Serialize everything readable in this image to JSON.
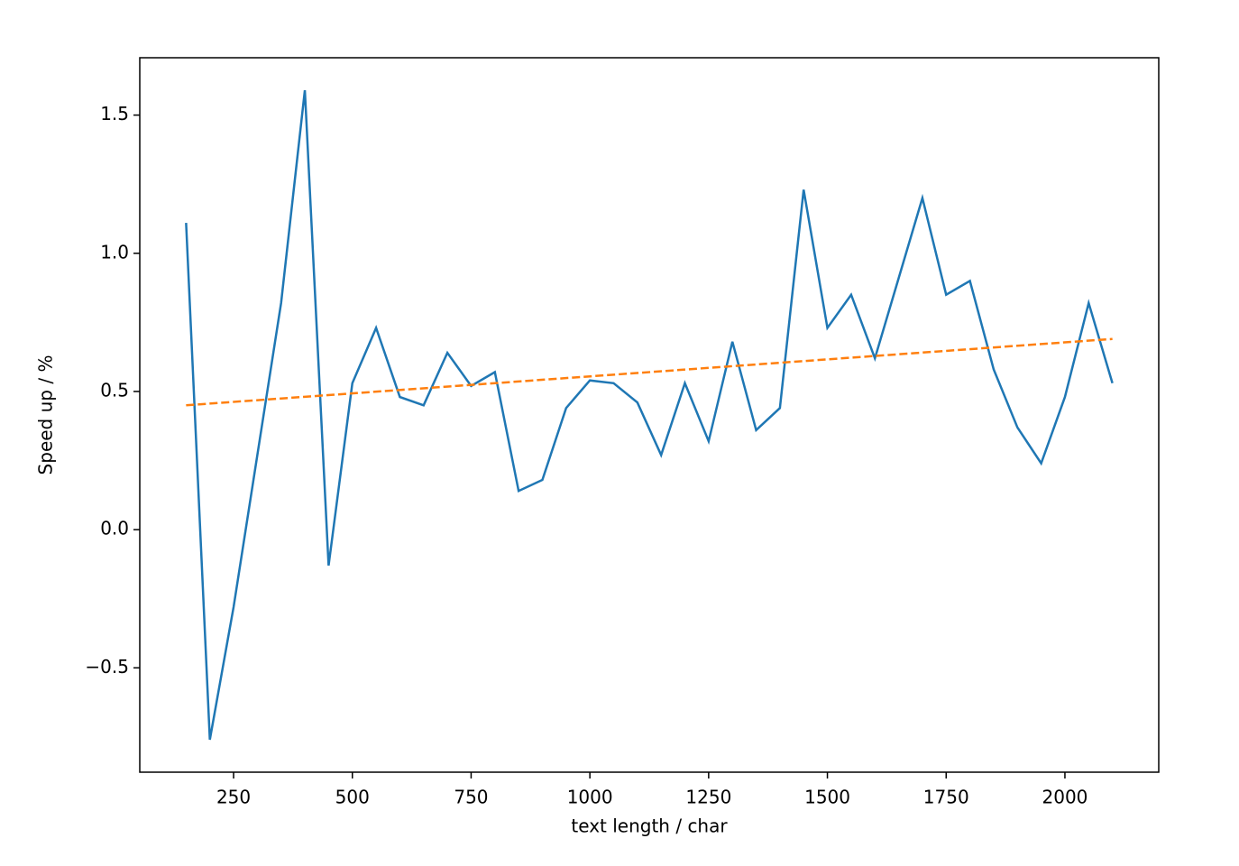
{
  "chart_data": {
    "type": "line",
    "xlabel": "text length / char",
    "ylabel": "Speed up / %",
    "x": [
      150,
      200,
      250,
      300,
      350,
      400,
      450,
      500,
      550,
      600,
      650,
      700,
      750,
      800,
      850,
      900,
      950,
      1000,
      1050,
      1100,
      1150,
      1200,
      1250,
      1300,
      1350,
      1400,
      1450,
      1500,
      1550,
      1600,
      1650,
      1700,
      1750,
      1800,
      1850,
      1900,
      1950,
      2000,
      2050,
      2100
    ],
    "series": [
      {
        "color": "#1f77b4",
        "linestyle": "solid",
        "values": [
          1.11,
          -0.76,
          -0.28,
          0.27,
          0.82,
          1.59,
          -0.13,
          0.53,
          0.73,
          0.48,
          0.45,
          0.64,
          0.52,
          0.57,
          0.14,
          0.18,
          0.44,
          0.54,
          0.53,
          0.46,
          0.27,
          0.53,
          0.32,
          0.68,
          0.36,
          0.44,
          1.23,
          0.73,
          0.85,
          0.62,
          0.91,
          1.2,
          0.85,
          0.9,
          0.58,
          0.37,
          0.24,
          0.48,
          0.82,
          0.53
        ]
      },
      {
        "color": "#ff7f0e",
        "linestyle": "dashed",
        "x": [
          150,
          2100
        ],
        "values": [
          0.45,
          0.69
        ]
      }
    ],
    "xlim": [
      52.5,
      2197.5
    ],
    "ylim": [
      -0.8775,
      1.7075
    ],
    "xticks": [
      250,
      500,
      750,
      1000,
      1250,
      1500,
      1750,
      2000
    ],
    "yticks": [
      {
        "value": -0.5,
        "label": "−0.5"
      },
      {
        "value": 0,
        "label": "0.0"
      },
      0.5,
      {
        "value": 1,
        "label": "1.0"
      },
      1.5
    ]
  }
}
